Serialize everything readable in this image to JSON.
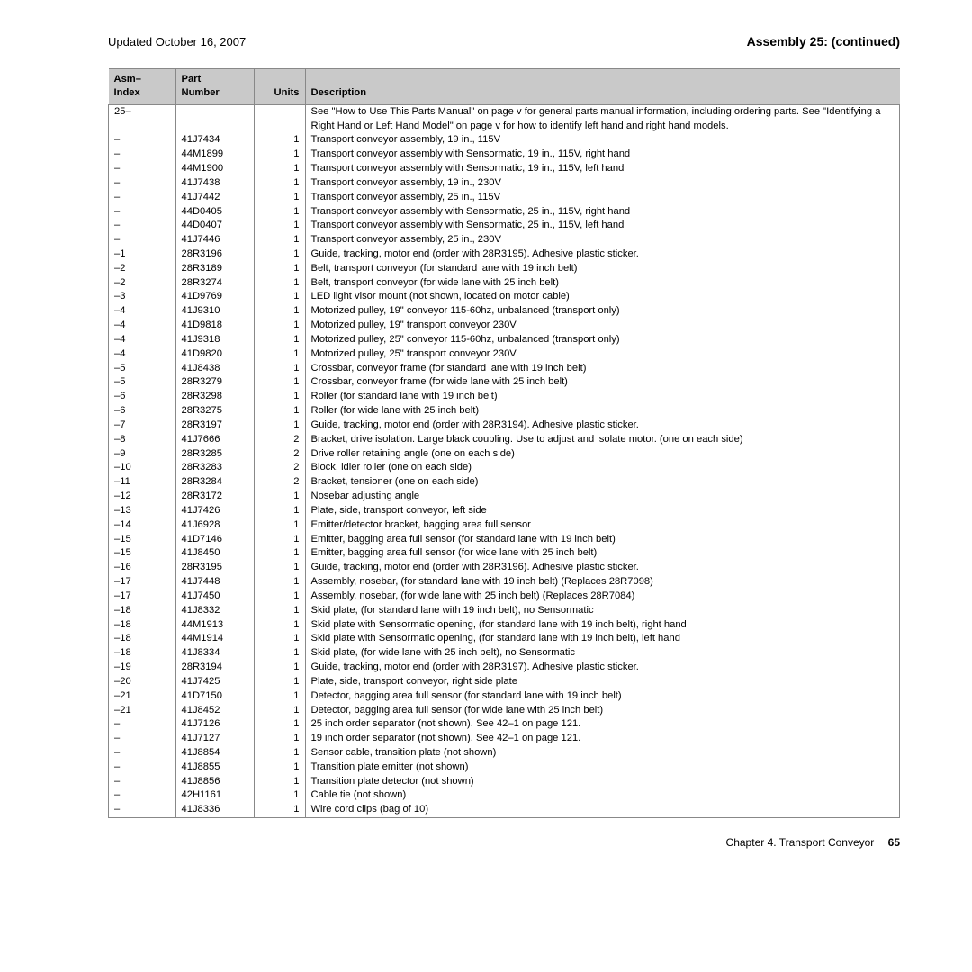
{
  "header": {
    "updated": "Updated October 16, 2007",
    "title": "Assembly 25: (continued)"
  },
  "columns": {
    "asm": "Asm–\nIndex",
    "part": "Part\nNumber",
    "units": "Units",
    "desc": "Description"
  },
  "rows": [
    {
      "asm": "25–",
      "part": "",
      "units": "",
      "desc": "See \"How to Use This Parts Manual\" on page v for general parts manual information, including ordering parts. See \"Identifying a Right Hand or Left Hand Model\" on page v for how to identify left hand and right hand models."
    },
    {
      "asm": "–",
      "part": "41J7434",
      "units": "1",
      "desc": "Transport conveyor assembly, 19 in., 115V"
    },
    {
      "asm": "–",
      "part": "44M1899",
      "units": "1",
      "desc": "Transport conveyor assembly with Sensormatic, 19 in., 115V, right hand"
    },
    {
      "asm": "–",
      "part": "44M1900",
      "units": "1",
      "desc": "Transport conveyor assembly with Sensormatic, 19 in., 115V, left hand"
    },
    {
      "asm": "–",
      "part": "41J7438",
      "units": "1",
      "desc": "Transport conveyor assembly, 19 in., 230V"
    },
    {
      "asm": "–",
      "part": "41J7442",
      "units": "1",
      "desc": "Transport conveyor assembly, 25 in., 115V"
    },
    {
      "asm": "–",
      "part": "44D0405",
      "units": "1",
      "desc": "Transport conveyor assembly with Sensormatic, 25 in., 115V, right hand"
    },
    {
      "asm": "–",
      "part": "44D0407",
      "units": "1",
      "desc": "Transport conveyor assembly with Sensormatic, 25 in., 115V, left hand"
    },
    {
      "asm": "–",
      "part": "41J7446",
      "units": "1",
      "desc": "Transport conveyor assembly, 25 in., 230V"
    },
    {
      "asm": "–1",
      "part": "28R3196",
      "units": "1",
      "desc": "Guide, tracking, motor end (order with 28R3195). Adhesive plastic sticker."
    },
    {
      "asm": "–2",
      "part": "28R3189",
      "units": "1",
      "desc": "Belt, transport conveyor (for standard lane with 19 inch belt)"
    },
    {
      "asm": "–2",
      "part": "28R3274",
      "units": "1",
      "desc": "Belt, transport conveyor (for wide lane with 25 inch belt)"
    },
    {
      "asm": "–3",
      "part": "41D9769",
      "units": "1",
      "desc": "LED light visor mount (not shown, located on motor cable)"
    },
    {
      "asm": "–4",
      "part": "41J9310",
      "units": "1",
      "desc": "Motorized pulley, 19\" conveyor 115-60hz, unbalanced (transport only)"
    },
    {
      "asm": "–4",
      "part": "41D9818",
      "units": "1",
      "desc": "Motorized pulley, 19\" transport conveyor 230V"
    },
    {
      "asm": "–4",
      "part": "41J9318",
      "units": "1",
      "desc": "Motorized pulley, 25\" conveyor 115-60hz, unbalanced (transport only)"
    },
    {
      "asm": "–4",
      "part": "41D9820",
      "units": "1",
      "desc": "Motorized pulley, 25\" transport conveyor 230V"
    },
    {
      "asm": "–5",
      "part": "41J8438",
      "units": "1",
      "desc": "Crossbar, conveyor frame (for standard lane with 19 inch belt)"
    },
    {
      "asm": "–5",
      "part": "28R3279",
      "units": "1",
      "desc": "Crossbar, conveyor frame (for wide lane with 25 inch belt)"
    },
    {
      "asm": "–6",
      "part": "28R3298",
      "units": "1",
      "desc": "Roller (for standard lane with 19 inch belt)"
    },
    {
      "asm": "–6",
      "part": "28R3275",
      "units": "1",
      "desc": "Roller (for wide lane with 25 inch belt)"
    },
    {
      "asm": "–7",
      "part": "28R3197",
      "units": "1",
      "desc": "Guide, tracking, motor end (order with 28R3194). Adhesive plastic sticker."
    },
    {
      "asm": "–8",
      "part": "41J7666",
      "units": "2",
      "desc": "Bracket, drive isolation. Large black coupling. Use to adjust and isolate motor. (one on each side)"
    },
    {
      "asm": "–9",
      "part": "28R3285",
      "units": "2",
      "desc": "Drive roller retaining angle (one on each side)"
    },
    {
      "asm": "–10",
      "part": "28R3283",
      "units": "2",
      "desc": "Block, idler roller (one on each side)"
    },
    {
      "asm": "–11",
      "part": "28R3284",
      "units": "2",
      "desc": "Bracket, tensioner (one on each side)"
    },
    {
      "asm": "–12",
      "part": "28R3172",
      "units": "1",
      "desc": "Nosebar adjusting angle"
    },
    {
      "asm": "–13",
      "part": "41J7426",
      "units": "1",
      "desc": "Plate, side, transport conveyor, left side"
    },
    {
      "asm": "–14",
      "part": "41J6928",
      "units": "1",
      "desc": "Emitter/detector bracket, bagging area full sensor"
    },
    {
      "asm": "–15",
      "part": "41D7146",
      "units": "1",
      "desc": "Emitter, bagging area full sensor (for standard lane with 19 inch belt)"
    },
    {
      "asm": "–15",
      "part": "41J8450",
      "units": "1",
      "desc": "Emitter, bagging area full sensor (for wide lane with 25 inch belt)"
    },
    {
      "asm": "–16",
      "part": "28R3195",
      "units": "1",
      "desc": "Guide, tracking, motor end (order with 28R3196). Adhesive plastic sticker."
    },
    {
      "asm": "–17",
      "part": "41J7448",
      "units": "1",
      "desc": "Assembly, nosebar, (for standard lane with 19 inch belt) (Replaces 28R7098)"
    },
    {
      "asm": "–17",
      "part": "41J7450",
      "units": "1",
      "desc": "Assembly, nosebar, (for wide lane with 25 inch belt) (Replaces 28R7084)"
    },
    {
      "asm": "–18",
      "part": "41J8332",
      "units": "1",
      "desc": "Skid plate, (for standard lane with 19 inch belt), no Sensormatic"
    },
    {
      "asm": "–18",
      "part": "44M1913",
      "units": "1",
      "desc": "Skid plate with Sensormatic opening, (for standard lane with 19 inch belt), right hand"
    },
    {
      "asm": "–18",
      "part": "44M1914",
      "units": "1",
      "desc": "Skid plate with Sensormatic opening, (for standard lane with 19 inch belt), left hand"
    },
    {
      "asm": "–18",
      "part": "41J8334",
      "units": "1",
      "desc": "Skid plate, (for wide lane with 25 inch belt), no Sensormatic"
    },
    {
      "asm": "–19",
      "part": "28R3194",
      "units": "1",
      "desc": "Guide, tracking, motor end (order with 28R3197). Adhesive plastic sticker."
    },
    {
      "asm": "–20",
      "part": "41J7425",
      "units": "1",
      "desc": "Plate, side, transport conveyor, right side plate"
    },
    {
      "asm": "–21",
      "part": "41D7150",
      "units": "1",
      "desc": "Detector, bagging area full sensor (for standard lane with 19 inch belt)"
    },
    {
      "asm": "–21",
      "part": "41J8452",
      "units": "1",
      "desc": "Detector, bagging area full sensor (for wide lane with 25 inch belt)"
    },
    {
      "asm": "–",
      "part": "41J7126",
      "units": "1",
      "desc": "25 inch order separator (not shown). See 42–1 on page 121."
    },
    {
      "asm": "–",
      "part": "41J7127",
      "units": "1",
      "desc": "19 inch order separator (not shown). See 42–1 on page 121."
    },
    {
      "asm": "–",
      "part": "41J8854",
      "units": "1",
      "desc": "Sensor cable, transition plate (not shown)"
    },
    {
      "asm": "–",
      "part": "41J8855",
      "units": "1",
      "desc": "Transition plate emitter (not shown)"
    },
    {
      "asm": "–",
      "part": "41J8856",
      "units": "1",
      "desc": "Transition plate detector (not shown)"
    },
    {
      "asm": "–",
      "part": "42H1161",
      "units": "1",
      "desc": "Cable tie (not shown)"
    },
    {
      "asm": "–",
      "part": "41J8336",
      "units": "1",
      "desc": "Wire cord clips (bag of 10)"
    }
  ],
  "footer": {
    "chapter": "Chapter 4. Transport Conveyor",
    "page": "65"
  }
}
